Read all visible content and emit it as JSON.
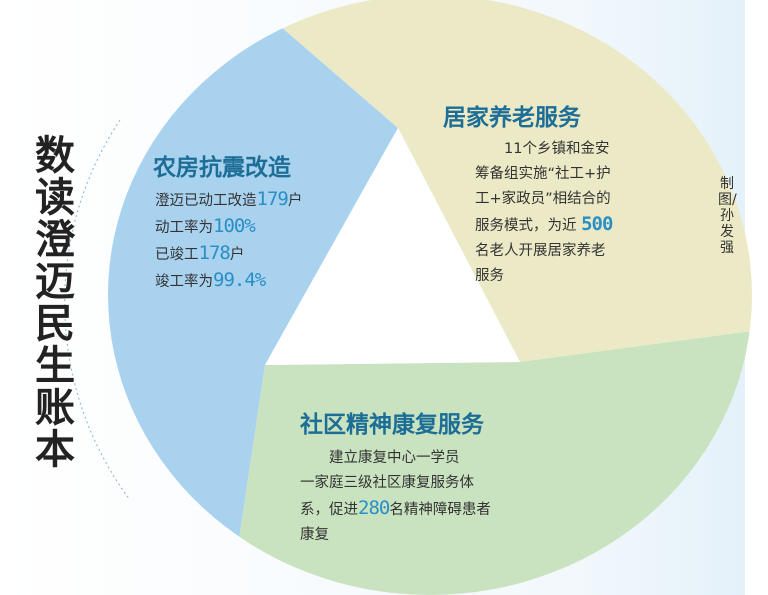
{
  "main_title": "数读澄迈民生账本",
  "credit": "制图/孙发强",
  "colors": {
    "blue": "#a9d2ef",
    "yellow": "#eceac6",
    "green": "#c9e3c0",
    "title": "#1d6e96",
    "number": "#2a8fc6"
  },
  "sections": {
    "housing": {
      "title": "农房抗震改造",
      "lines": [
        {
          "pre": "澄迈已动工改造",
          "num": "179",
          "post": "户"
        },
        {
          "pre": "动工率为",
          "num": "100%",
          "post": ""
        },
        {
          "pre": "已竣工",
          "num": "178",
          "post": "户"
        },
        {
          "pre": "竣工率为",
          "num": "99.4%",
          "post": ""
        }
      ]
    },
    "elderly": {
      "title": "居家养老服务",
      "lines": [
        "　　11个乡镇和金安",
        "筹备组实施“社工+护",
        "工+家政员”相结合的"
      ],
      "line4_pre": "服务模式，为近",
      "line4_num": "500",
      "lines_after": [
        "名老人开展居家养老",
        "服务"
      ]
    },
    "rehab": {
      "title": "社区精神康复服务",
      "lines": [
        "　　建立康复中心一学员",
        "一家庭三级社区康复服务体"
      ],
      "line3_pre": "系，促进",
      "line3_num": "280",
      "line3_post": "名精神障碍患者",
      "line4": "康复"
    }
  }
}
